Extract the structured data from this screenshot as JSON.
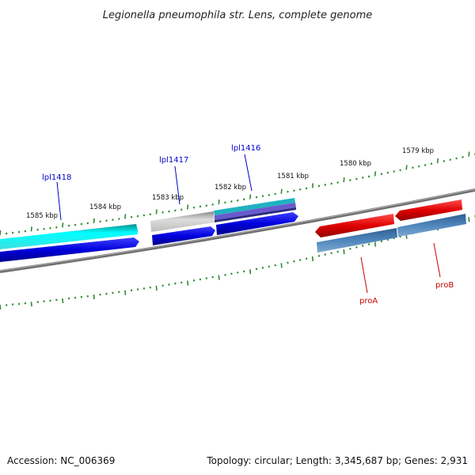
{
  "title": "Legionella pneumophila str. Lens, complete genome",
  "footer": {
    "accession": "Accession: NC_006369",
    "topology": "Topology: circular; Length: 3,345,687 bp; Genes: 2,931"
  },
  "ticks": [
    {
      "label": "1585 kbp"
    },
    {
      "label": "1584 kbp"
    },
    {
      "label": "1583 kbp"
    },
    {
      "label": "1582 kbp"
    },
    {
      "label": "1581 kbp"
    },
    {
      "label": "1580 kbp"
    },
    {
      "label": "1579 kbp"
    }
  ],
  "genes": [
    {
      "name": "lpl1418",
      "color": "#0000cc"
    },
    {
      "name": "lpl1417",
      "color": "#0000cc"
    },
    {
      "name": "lpl1416",
      "color": "#0000cc"
    },
    {
      "name": "proA",
      "color": "#cc0000"
    },
    {
      "name": "proB",
      "color": "#cc0000"
    }
  ],
  "colors": {
    "backbone": "#808080",
    "tick": "#2e8b2e",
    "cyan_feature": "#00e5ee",
    "blue_feature": "#0000e0",
    "gray_feature": "#b0b0b0",
    "red_feature": "#e00000",
    "steel_feature": "#4682b4"
  }
}
